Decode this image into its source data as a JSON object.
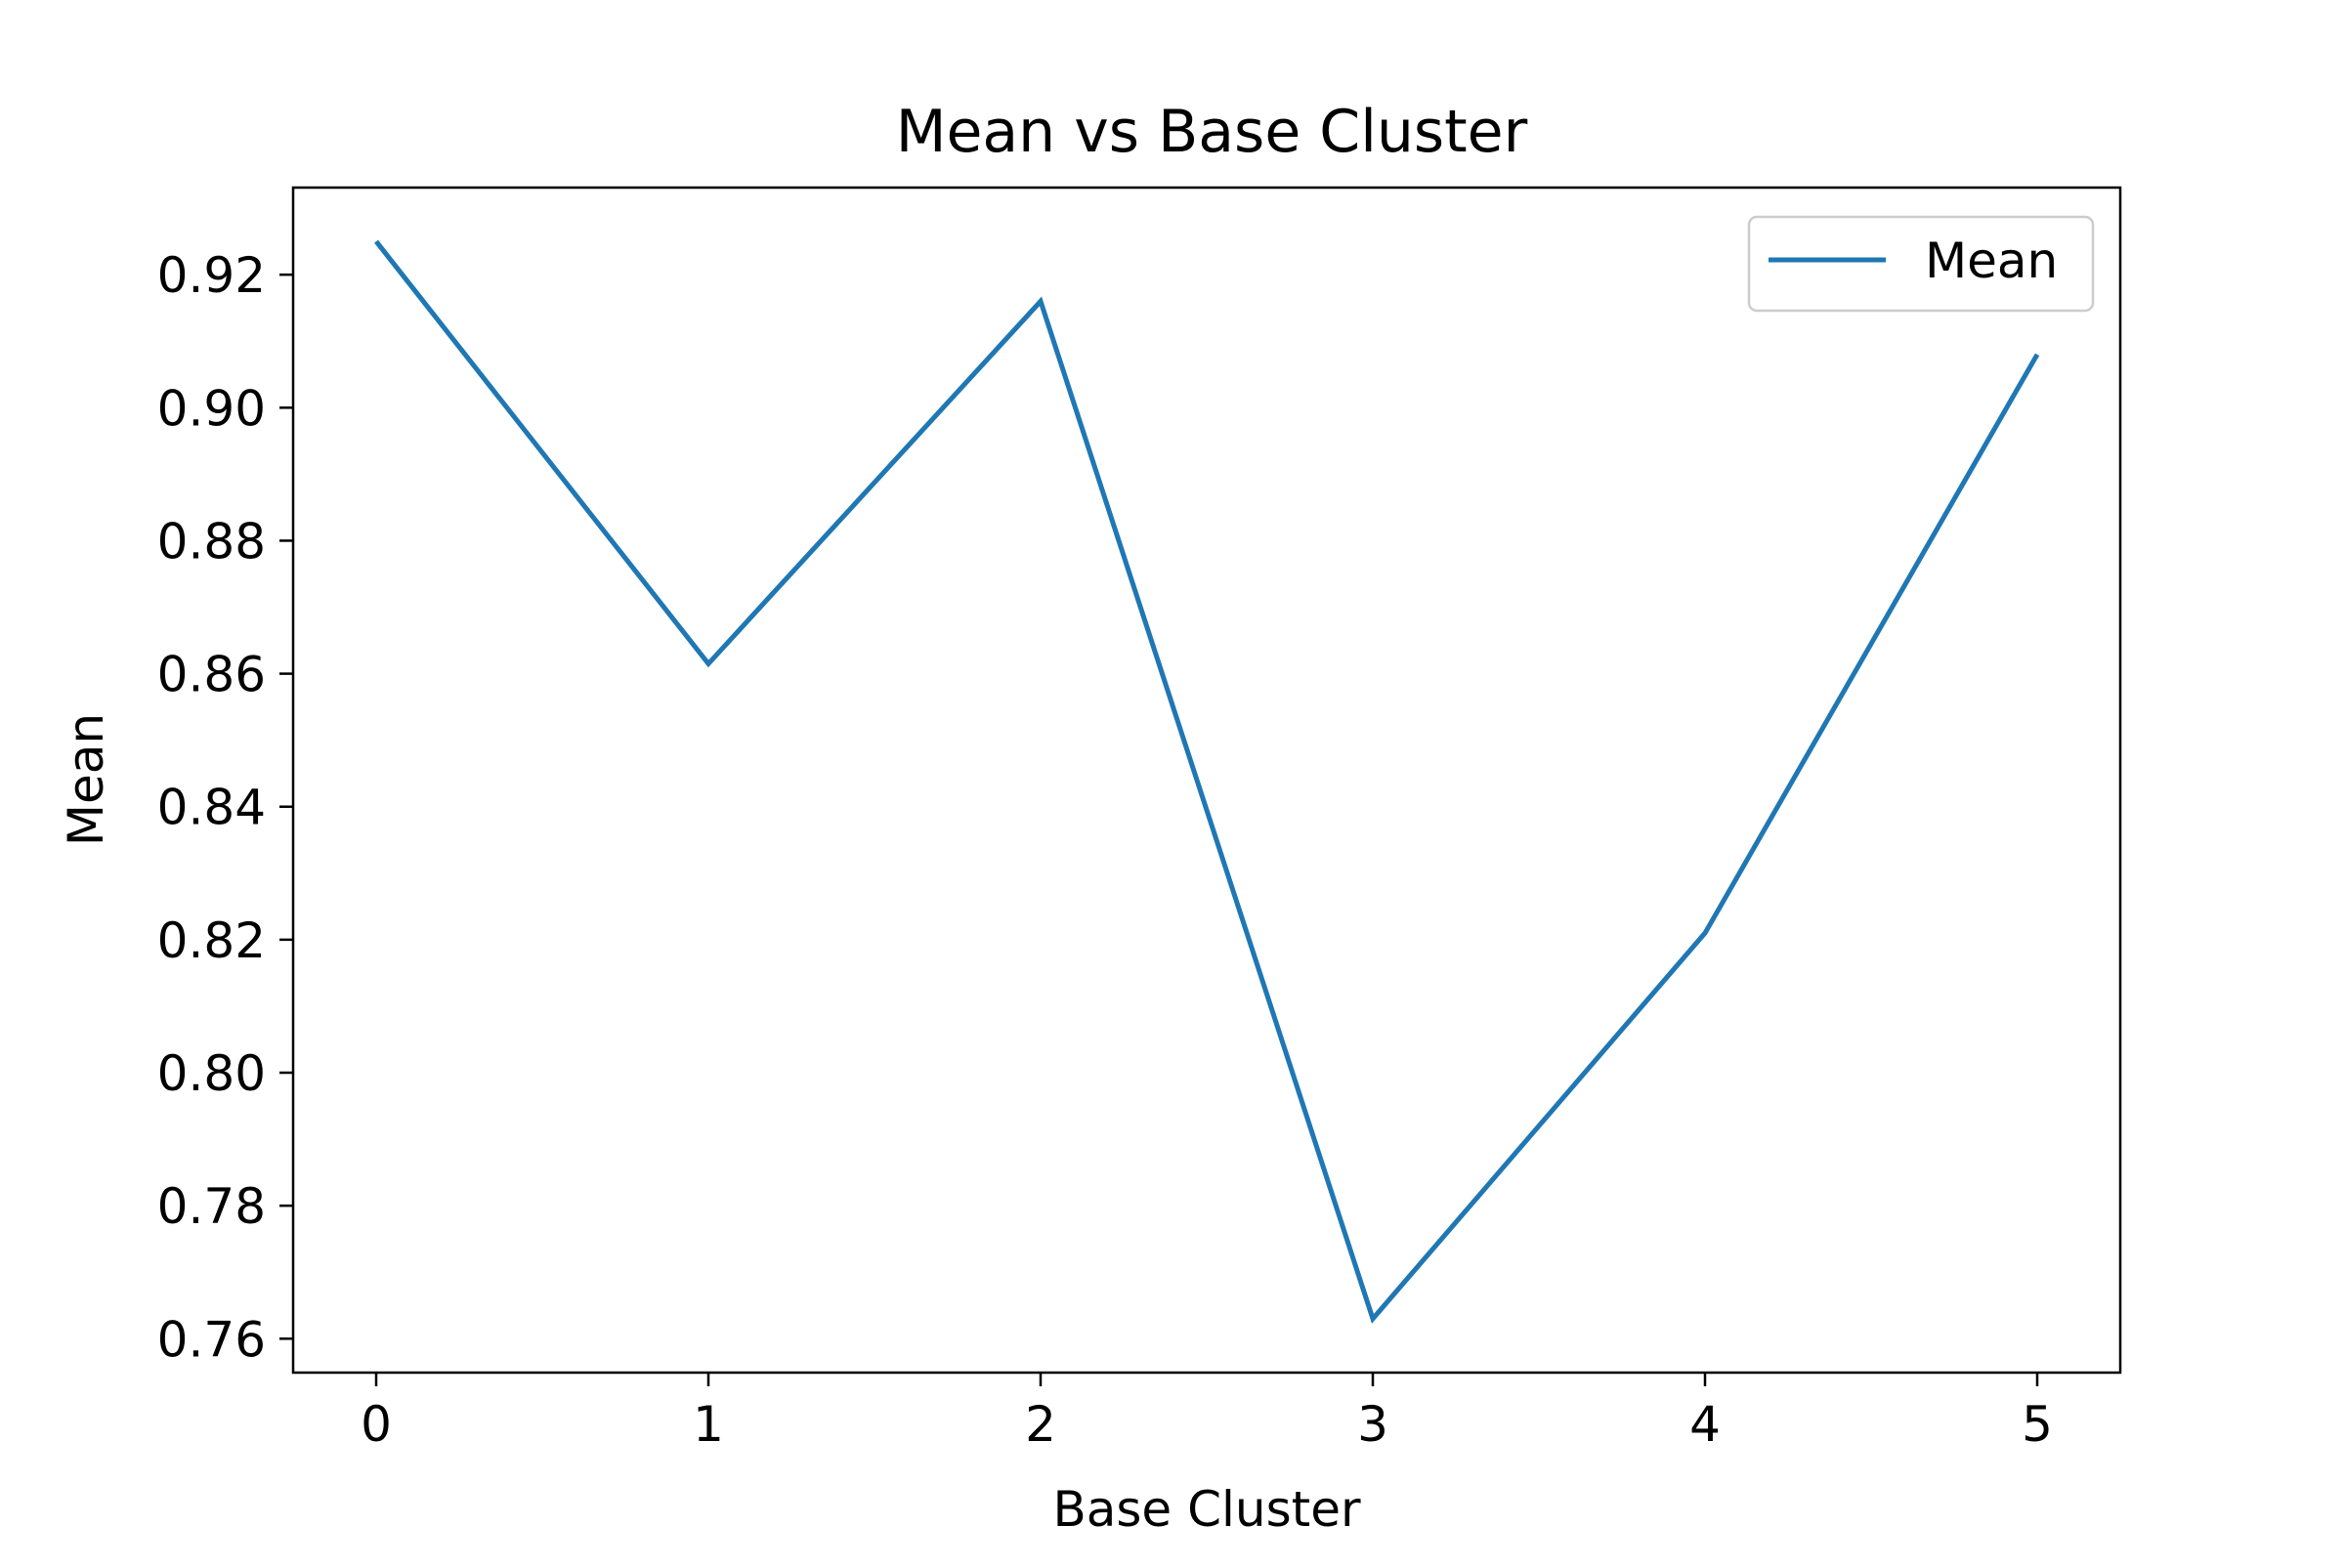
{
  "chart_data": {
    "type": "line",
    "title": "Mean vs Base Cluster",
    "xlabel": "Base Cluster",
    "ylabel": "Mean",
    "x": [
      0,
      1,
      2,
      3,
      4,
      5
    ],
    "series": [
      {
        "name": "Mean",
        "values": [
          0.925,
          0.8615,
          0.916,
          0.763,
          0.821,
          0.908
        ]
      }
    ],
    "xticks": [
      "0",
      "1",
      "2",
      "3",
      "4",
      "5"
    ],
    "yticks": [
      "0.76",
      "0.78",
      "0.80",
      "0.82",
      "0.84",
      "0.86",
      "0.88",
      "0.90",
      "0.92"
    ],
    "xlim": [
      -0.25,
      5.25
    ],
    "ylim": [
      0.7549,
      0.9331
    ],
    "legend": "top-right",
    "grid": false,
    "colors": {
      "series": "#1f77b4",
      "axes": "#000000",
      "legend_border": "#cccccc"
    }
  }
}
